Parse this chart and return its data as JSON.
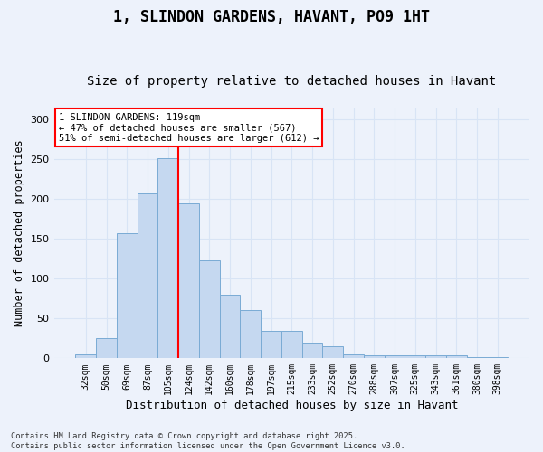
{
  "title": "1, SLINDON GARDENS, HAVANT, PO9 1HT",
  "subtitle": "Size of property relative to detached houses in Havant",
  "xlabel": "Distribution of detached houses by size in Havant",
  "ylabel": "Number of detached properties",
  "categories": [
    "32sqm",
    "50sqm",
    "69sqm",
    "87sqm",
    "105sqm",
    "124sqm",
    "142sqm",
    "160sqm",
    "178sqm",
    "197sqm",
    "215sqm",
    "233sqm",
    "252sqm",
    "270sqm",
    "288sqm",
    "307sqm",
    "325sqm",
    "343sqm",
    "361sqm",
    "380sqm",
    "398sqm"
  ],
  "values": [
    5,
    25,
    157,
    207,
    251,
    195,
    123,
    80,
    61,
    35,
    35,
    20,
    15,
    5,
    4,
    4,
    4,
    4,
    4,
    2,
    2
  ],
  "bar_color": "#c5d8f0",
  "bar_edge_color": "#7aabd4",
  "vline_x_index": 4,
  "vline_color": "red",
  "annotation_text": "1 SLINDON GARDENS: 119sqm\n← 47% of detached houses are smaller (567)\n51% of semi-detached houses are larger (612) →",
  "annotation_box_color": "white",
  "annotation_box_edge_color": "red",
  "ylim": [
    0,
    315
  ],
  "yticks": [
    0,
    50,
    100,
    150,
    200,
    250,
    300
  ],
  "footnote": "Contains HM Land Registry data © Crown copyright and database right 2025.\nContains public sector information licensed under the Open Government Licence v3.0.",
  "bg_color": "#edf2fb",
  "grid_color": "#d8e4f5",
  "title_fontsize": 12,
  "subtitle_fontsize": 10,
  "xlabel_fontsize": 9,
  "ylabel_fontsize": 8.5,
  "tick_fontsize": 7,
  "annot_fontsize": 7.5
}
